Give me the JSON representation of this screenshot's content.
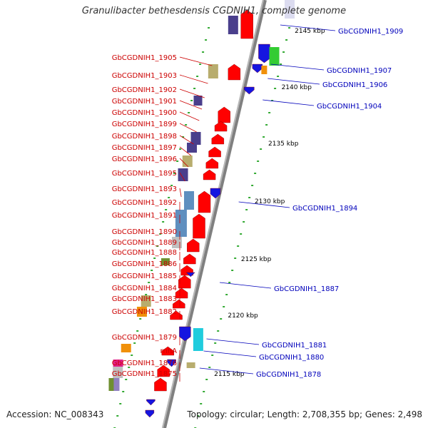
{
  "title": "Granulibacter bethesdensis CGDNIH1, complete genome",
  "accession_text": "Accession: NC_008343",
  "summary_text": "Topology: circular; Length: 2,708,355 bp; Genes: 2,498",
  "colors": {
    "left_label": "#cc0000",
    "right_label": "#0000bb",
    "red_feature": "#ff0000",
    "blue_feature": "#1515e0",
    "backbone": "#808080",
    "tick_dot": "#33aa33"
  },
  "scale_ticks": [
    "2145 kbp",
    "2140 kbp",
    "2135 kbp",
    "2130 kbp",
    "2125 kbp",
    "2120 kbp",
    "2115 kbp"
  ],
  "left_labels": [
    "GbCGDNIH1_1905",
    "GbCGDNIH1_1903",
    "GbCGDNIH1_1902",
    "GbCGDNIH1_1901",
    "GbCGDNIH1_1900",
    "GbCGDNIH1_1899",
    "GbCGDNIH1_1898",
    "GbCGDNIH1_1897",
    "GbCGDNIH1_1896",
    "GbCGDNIH1_1895",
    "GbCGDNIH1_1893",
    "GbCGDNIH1_1892",
    "GbCGDNIH1_1891",
    "GbCGDNIH1_1890",
    "GbCGDNIH1_1889",
    "GbCGDNIH1_1888",
    "GbCGDNIH1_1886",
    "GbCGDNIH1_1885",
    "GbCGDNIH1_1884",
    "GbCGDNIH1_1883",
    "GbCGDNIH1_1882",
    "GbCGDNIH1_1879",
    "rnhA",
    "GbCGDNIH1_1876",
    "GbCGDNIH1_1875"
  ],
  "right_labels": [
    "GbCGDNIH1_1909",
    "GbCGDNIH1_1907",
    "GbCGDNIH1_1906",
    "GbCGDNIH1_1904",
    "GbCGDNIH1_1894",
    "GbCGDNIH1_1887",
    "GbCGDNIH1_1881",
    "GbCGDNIH1_1880",
    "GbCGDNIH1_1878"
  ]
}
